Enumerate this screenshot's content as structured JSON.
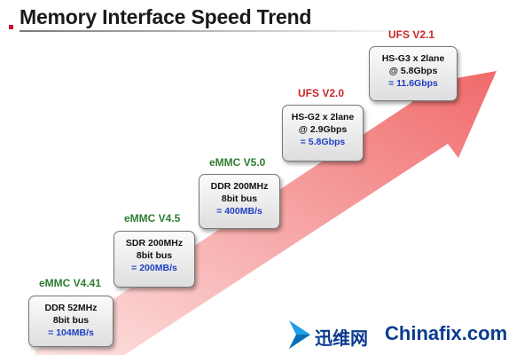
{
  "title": "Memory Interface Speed Trend",
  "colors": {
    "arrow_light": "#fde3e3",
    "arrow_dark": "#f06a6a",
    "version_green": "#2e7d32",
    "version_red": "#c62828",
    "speed_blue": "#1f3fc4"
  },
  "steps": [
    {
      "version": "eMMC V4.41",
      "version_color": "green",
      "line1": "DDR 52MHz",
      "line2": "8bit bus",
      "speed": "= 104MB/s"
    },
    {
      "version": "eMMC V4.5",
      "version_color": "green",
      "line1": "SDR 200MHz",
      "line2": "8bit bus",
      "speed": "= 200MB/s"
    },
    {
      "version": "eMMC V5.0",
      "version_color": "green",
      "line1": "DDR 200MHz",
      "line2": "8bit bus",
      "speed": "= 400MB/s"
    },
    {
      "version": "UFS V2.0",
      "version_color": "red",
      "line1": "HS-G2 x 2lane",
      "line2": "@ 2.9Gbps",
      "speed": "= 5.8Gbps"
    },
    {
      "version": "UFS V2.1",
      "version_color": "red",
      "line1": "HS-G3 x 2lane",
      "line2": "@ 5.8Gbps",
      "speed": "= 11.6Gbps"
    }
  ],
  "watermark": {
    "brand_cn": "迅维网",
    "brand_en": "Chinafix.com"
  }
}
